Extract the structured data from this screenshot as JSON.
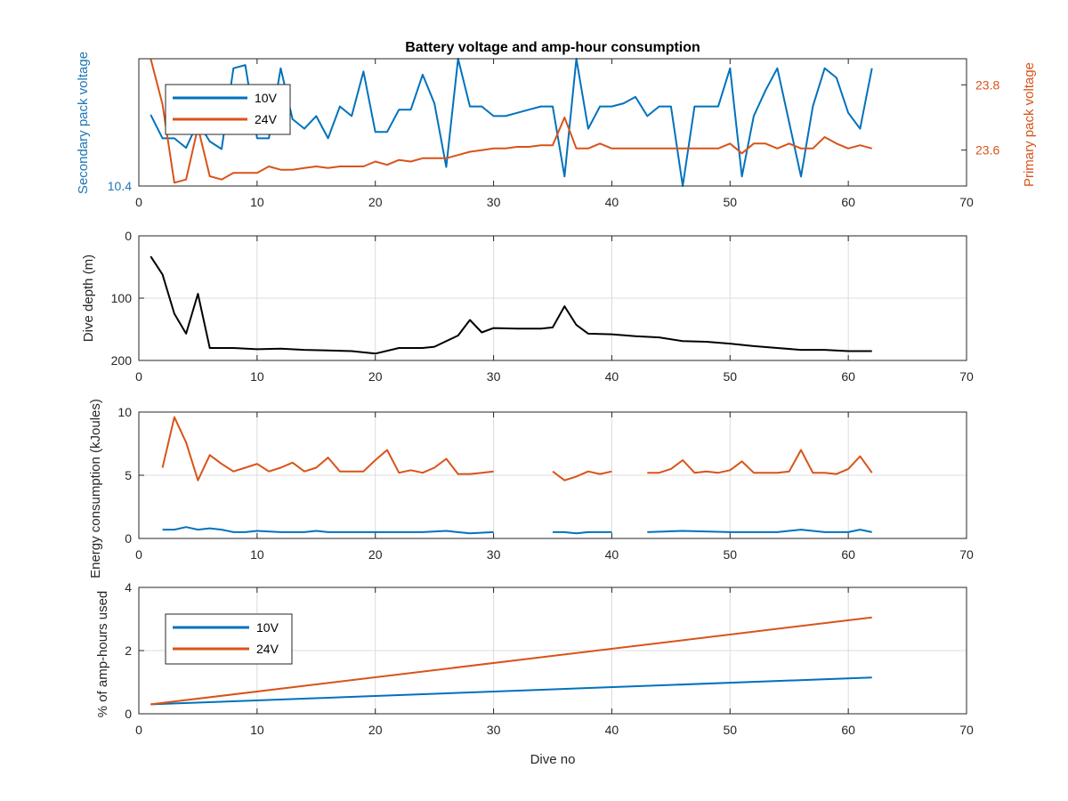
{
  "chart_data": [
    {
      "type": "line",
      "title": "Battery voltage and amp-hour consumption",
      "xlabel": "",
      "xlim": [
        0,
        70
      ],
      "xticks": [
        0,
        10,
        20,
        30,
        40,
        50,
        60,
        70
      ],
      "y_left": {
        "label": "Secondary pack voltage",
        "ylim": [
          10.4,
          10.6
        ],
        "ticks": [
          10.4
        ],
        "color": "#1f77b4"
      },
      "y_right": {
        "label": "Primary pack voltage",
        "ylim": [
          23.49,
          23.88
        ],
        "ticks": [
          23.6,
          23.8
        ],
        "color": "#d95319"
      },
      "grid": false,
      "legend": {
        "location": "top-left",
        "entries": [
          "10V",
          "24V"
        ]
      },
      "series": [
        {
          "name": "10V",
          "axis": "left",
          "color": "#0072bd",
          "x": [
            1,
            2,
            3,
            4,
            5,
            6,
            7,
            8,
            9,
            10,
            11,
            12,
            13,
            14,
            15,
            16,
            17,
            18,
            19,
            20,
            21,
            22,
            23,
            24,
            25,
            26,
            27,
            28,
            29,
            30,
            31,
            32,
            33,
            34,
            35,
            36,
            37,
            38,
            39,
            40,
            41,
            42,
            43,
            44,
            45,
            46,
            47,
            48,
            49,
            50,
            51,
            52,
            53,
            54,
            55,
            56,
            57,
            58,
            59,
            60,
            61,
            62
          ],
          "values": [
            10.512,
            10.475,
            10.475,
            10.46,
            10.5,
            10.47,
            10.458,
            10.585,
            10.59,
            10.475,
            10.475,
            10.585,
            10.505,
            10.49,
            10.51,
            10.475,
            10.525,
            10.51,
            10.58,
            10.485,
            10.485,
            10.52,
            10.52,
            10.575,
            10.53,
            10.43,
            10.6,
            10.525,
            10.525,
            10.51,
            10.51,
            10.515,
            10.52,
            10.525,
            10.525,
            10.415,
            10.6,
            10.49,
            10.525,
            10.525,
            10.53,
            10.54,
            10.51,
            10.525,
            10.525,
            10.4,
            10.525,
            10.525,
            10.525,
            10.585,
            10.415,
            10.51,
            10.55,
            10.585,
            10.5,
            10.415,
            10.525,
            10.585,
            10.57,
            10.515,
            10.49,
            10.585
          ]
        },
        {
          "name": "24V",
          "axis": "right",
          "color": "#d95319",
          "x": [
            1,
            2,
            3,
            4,
            5,
            6,
            7,
            8,
            9,
            10,
            11,
            12,
            13,
            14,
            15,
            16,
            17,
            18,
            19,
            20,
            21,
            22,
            23,
            24,
            25,
            26,
            27,
            28,
            29,
            30,
            31,
            32,
            33,
            34,
            35,
            36,
            37,
            38,
            39,
            40,
            41,
            42,
            43,
            44,
            45,
            46,
            47,
            48,
            49,
            50,
            51,
            52,
            53,
            54,
            55,
            56,
            57,
            58,
            59,
            60,
            61,
            62
          ],
          "values": [
            23.88,
            23.74,
            23.5,
            23.51,
            23.67,
            23.52,
            23.51,
            23.53,
            23.53,
            23.53,
            23.55,
            23.54,
            23.54,
            23.545,
            23.55,
            23.545,
            23.55,
            23.55,
            23.55,
            23.565,
            23.555,
            23.57,
            23.565,
            23.575,
            23.575,
            23.575,
            23.585,
            23.595,
            23.6,
            23.605,
            23.605,
            23.61,
            23.61,
            23.615,
            23.615,
            23.7,
            23.605,
            23.605,
            23.62,
            23.605,
            23.605,
            23.605,
            23.605,
            23.605,
            23.605,
            23.605,
            23.605,
            23.605,
            23.605,
            23.62,
            23.59,
            23.62,
            23.62,
            23.605,
            23.62,
            23.605,
            23.605,
            23.64,
            23.62,
            23.605,
            23.615,
            23.605
          ]
        }
      ]
    },
    {
      "type": "line",
      "title": "",
      "xlabel": "",
      "ylabel": "Dive depth (m)",
      "xlim": [
        0,
        70
      ],
      "xticks": [
        0,
        10,
        20,
        30,
        40,
        50,
        60,
        70
      ],
      "ylim": [
        0,
        200
      ],
      "yticks": [
        0,
        100,
        200
      ],
      "y_reversed": true,
      "grid": true,
      "series": [
        {
          "color": "#000000",
          "x": [
            1,
            2,
            3,
            4,
            5,
            6,
            8,
            10,
            12,
            14,
            16,
            18,
            20,
            22,
            24,
            25,
            27,
            28,
            29,
            30,
            32,
            34,
            35,
            36,
            37,
            38,
            40,
            42,
            44,
            46,
            48,
            50,
            52,
            54,
            56,
            58,
            60,
            62
          ],
          "values": [
            33,
            62,
            125,
            157,
            93,
            180,
            180,
            182,
            181,
            183,
            184,
            185,
            189,
            180,
            180,
            178,
            160,
            135,
            155,
            148,
            149,
            149,
            147,
            113,
            143,
            157,
            158,
            161,
            163,
            169,
            170,
            173,
            177,
            180,
            183,
            183,
            185,
            185
          ]
        }
      ]
    },
    {
      "type": "line",
      "title": "",
      "xlabel": "",
      "ylabel": "Energy consumption (kJoules)",
      "xlim": [
        0,
        70
      ],
      "xticks": [
        0,
        10,
        20,
        30,
        40,
        50,
        60,
        70
      ],
      "ylim": [
        0,
        10
      ],
      "yticks": [
        0,
        5,
        10
      ],
      "grid": true,
      "series": [
        {
          "name": "24V",
          "color": "#d95319",
          "x": [
            2,
            3,
            4,
            5,
            6,
            7,
            8,
            9,
            10,
            11,
            12,
            13,
            14,
            15,
            16,
            17,
            18,
            19,
            20,
            21,
            22,
            23,
            24,
            25,
            26,
            27,
            28,
            29,
            30,
            null,
            35,
            36,
            37,
            38,
            39,
            40,
            null,
            43,
            44,
            45,
            46,
            47,
            48,
            49,
            50,
            51,
            52,
            53,
            54,
            55,
            56,
            57,
            58,
            59,
            60,
            61,
            62
          ],
          "values": [
            5.6,
            9.6,
            7.6,
            4.6,
            6.6,
            5.9,
            5.3,
            5.6,
            5.9,
            5.3,
            5.6,
            6.0,
            5.3,
            5.6,
            6.4,
            5.3,
            5.3,
            5.3,
            6.2,
            7.0,
            5.2,
            5.4,
            5.2,
            5.6,
            6.3,
            5.1,
            5.1,
            5.2,
            5.3,
            null,
            5.3,
            4.6,
            4.9,
            5.3,
            5.1,
            5.3,
            null,
            5.2,
            5.2,
            5.5,
            6.2,
            5.2,
            5.3,
            5.2,
            5.4,
            6.1,
            5.2,
            5.2,
            5.2,
            5.3,
            7.0,
            5.2,
            5.2,
            5.1,
            5.5,
            6.5,
            5.2
          ]
        },
        {
          "name": "10V",
          "color": "#0072bd",
          "x": [
            2,
            3,
            4,
            5,
            6,
            7,
            8,
            9,
            10,
            12,
            14,
            15,
            16,
            18,
            20,
            22,
            24,
            26,
            28,
            30,
            null,
            35,
            36,
            37,
            38,
            40,
            null,
            43,
            46,
            50,
            52,
            54,
            56,
            58,
            60,
            61,
            62
          ],
          "values": [
            0.7,
            0.7,
            0.9,
            0.7,
            0.8,
            0.7,
            0.5,
            0.5,
            0.6,
            0.5,
            0.5,
            0.6,
            0.5,
            0.5,
            0.5,
            0.5,
            0.5,
            0.6,
            0.4,
            0.5,
            null,
            0.5,
            0.5,
            0.4,
            0.5,
            0.5,
            null,
            0.5,
            0.6,
            0.5,
            0.5,
            0.5,
            0.7,
            0.5,
            0.5,
            0.7,
            0.5
          ]
        }
      ]
    },
    {
      "type": "line",
      "title": "",
      "xlabel": "Dive no",
      "ylabel": "% of amp-hours used",
      "xlim": [
        0,
        70
      ],
      "xticks": [
        0,
        10,
        20,
        30,
        40,
        50,
        60,
        70
      ],
      "ylim": [
        0,
        4
      ],
      "yticks": [
        0,
        2,
        4
      ],
      "grid": true,
      "legend": {
        "location": "top-left",
        "entries": [
          "10V",
          "24V"
        ]
      },
      "series": [
        {
          "name": "10V",
          "color": "#0072bd",
          "x": [
            1,
            62
          ],
          "values": [
            0.3,
            1.15
          ]
        },
        {
          "name": "24V",
          "color": "#d95319",
          "x": [
            1,
            62
          ],
          "values": [
            0.3,
            3.05
          ]
        }
      ]
    }
  ]
}
